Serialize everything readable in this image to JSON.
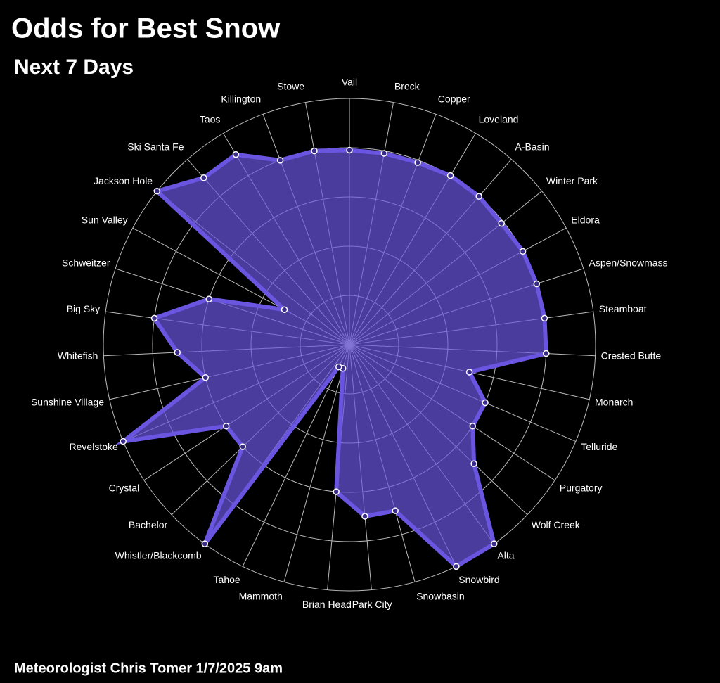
{
  "chart_data": {
    "type": "radar",
    "title": "Odds for Best Snow",
    "subtitle": "Next 7 Days",
    "footer": "Meteorologist Chris Tomer  1/7/2025 9am",
    "categories": [
      "Vail",
      "Breck",
      "Copper",
      "Loveland",
      "A-Basin",
      "Winter Park",
      "Eldora",
      "Aspen/Snowmass",
      "Steamboat",
      "Crested Butte",
      "Monarch",
      "Telluride",
      "Purgatory",
      "Wolf Creek",
      "Alta",
      "Snowbird",
      "Snowbasin",
      "Park City",
      "Brian Head",
      "Mammoth",
      "Tahoe",
      "Whistler/Blackcomb",
      "Bachelor",
      "Crystal",
      "Revelstoke",
      "Sunshine Village",
      "Whitefish",
      "Big Sky",
      "Schweitzer",
      "Sun Valley",
      "Jackson Hole",
      "Ski Santa Fe",
      "Taos",
      "Killington",
      "Stowe"
    ],
    "values": [
      79,
      79,
      79,
      80,
      80,
      79,
      80,
      80,
      80,
      80,
      50,
      60,
      60,
      70,
      100,
      100,
      70,
      70,
      60,
      10,
      10,
      100,
      60,
      60,
      100,
      60,
      70,
      80,
      60,
      30,
      100,
      90,
      90,
      80,
      80
    ],
    "color": "#6a55e0",
    "rlim": [
      0,
      100
    ],
    "rticks": [
      20,
      40,
      60,
      80,
      100
    ],
    "grid": true
  }
}
